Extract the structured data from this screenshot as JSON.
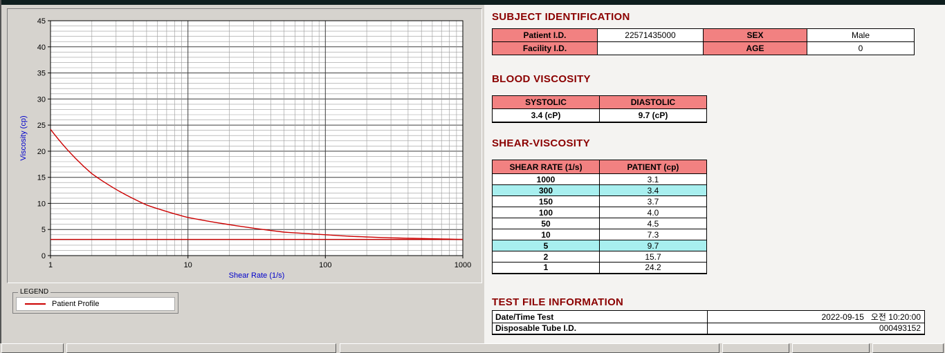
{
  "colors": {
    "window_background": "#d6d3ce",
    "report_background": "#f4f3f1",
    "topbar": "#0e1e1e",
    "heading_red": "#8b0000",
    "table_header_pink": "#f28181",
    "row_highlight_cyan": "#a8efef",
    "series_red": "#cc0000",
    "axis_label_blue": "#0000cc"
  },
  "chart_data": {
    "type": "line",
    "title": "",
    "xlabel": "Shear Rate (1/s)",
    "ylabel": "Viscosity (cp)",
    "x_scale": "log",
    "xlim": [
      1,
      1000
    ],
    "ylim": [
      0,
      45
    ],
    "x_ticks": [
      1,
      10,
      100,
      1000
    ],
    "y_ticks": [
      0,
      5,
      10,
      15,
      20,
      25,
      30,
      35,
      40,
      45
    ],
    "grid": "major-and-minor",
    "series": [
      {
        "name": "Patient Profile",
        "color": "#cc0000",
        "interpolation": "power",
        "x": [
          1,
          2,
          5,
          10,
          50,
          100,
          150,
          300,
          1000
        ],
        "y": [
          24.2,
          15.7,
          9.7,
          7.3,
          4.5,
          4.0,
          3.7,
          3.4,
          3.1
        ]
      },
      {
        "name": "baseline",
        "color": "#cc0000",
        "interpolation": "linear",
        "x": [
          1,
          1000
        ],
        "y": [
          3.1,
          3.1
        ]
      }
    ],
    "legend": {
      "box_label": "LEGEND",
      "entries": [
        {
          "label": "Patient Profile",
          "color": "#cc0000"
        }
      ],
      "position": "below-left"
    }
  },
  "subject": {
    "heading": "SUBJECT IDENTIFICATION",
    "rows": [
      {
        "label1": "Patient I.D.",
        "value1": "22571435000",
        "label2": "SEX",
        "value2": "Male"
      },
      {
        "label1": "Facility I.D.",
        "value1": "",
        "label2": "AGE",
        "value2": "0"
      }
    ]
  },
  "blood_viscosity": {
    "heading": "BLOOD VISCOSITY",
    "headers": [
      "SYSTOLIC",
      "DIASTOLIC"
    ],
    "values": [
      "3.4 (cP)",
      "9.7 (cP)"
    ]
  },
  "shear_viscosity": {
    "heading": "SHEAR-VISCOSITY",
    "headers": [
      "SHEAR RATE (1/s)",
      "PATIENT (cp)"
    ],
    "rows": [
      {
        "rate": "1000",
        "value": "3.1",
        "highlight": false
      },
      {
        "rate": "300",
        "value": "3.4",
        "highlight": true
      },
      {
        "rate": "150",
        "value": "3.7",
        "highlight": false
      },
      {
        "rate": "100",
        "value": "4.0",
        "highlight": false
      },
      {
        "rate": "50",
        "value": "4.5",
        "highlight": false
      },
      {
        "rate": "10",
        "value": "7.3",
        "highlight": false
      },
      {
        "rate": "5",
        "value": "9.7",
        "highlight": true
      },
      {
        "rate": "2",
        "value": "15.7",
        "highlight": false
      },
      {
        "rate": "1",
        "value": "24.2",
        "highlight": false
      }
    ]
  },
  "test_file": {
    "heading": "TEST FILE INFORMATION",
    "rows": [
      {
        "label": "Date/Time Test",
        "value": "2022-09-15   오전 10:20:00"
      },
      {
        "label": "Disposable Tube I.D.",
        "value": "000493152"
      }
    ]
  }
}
